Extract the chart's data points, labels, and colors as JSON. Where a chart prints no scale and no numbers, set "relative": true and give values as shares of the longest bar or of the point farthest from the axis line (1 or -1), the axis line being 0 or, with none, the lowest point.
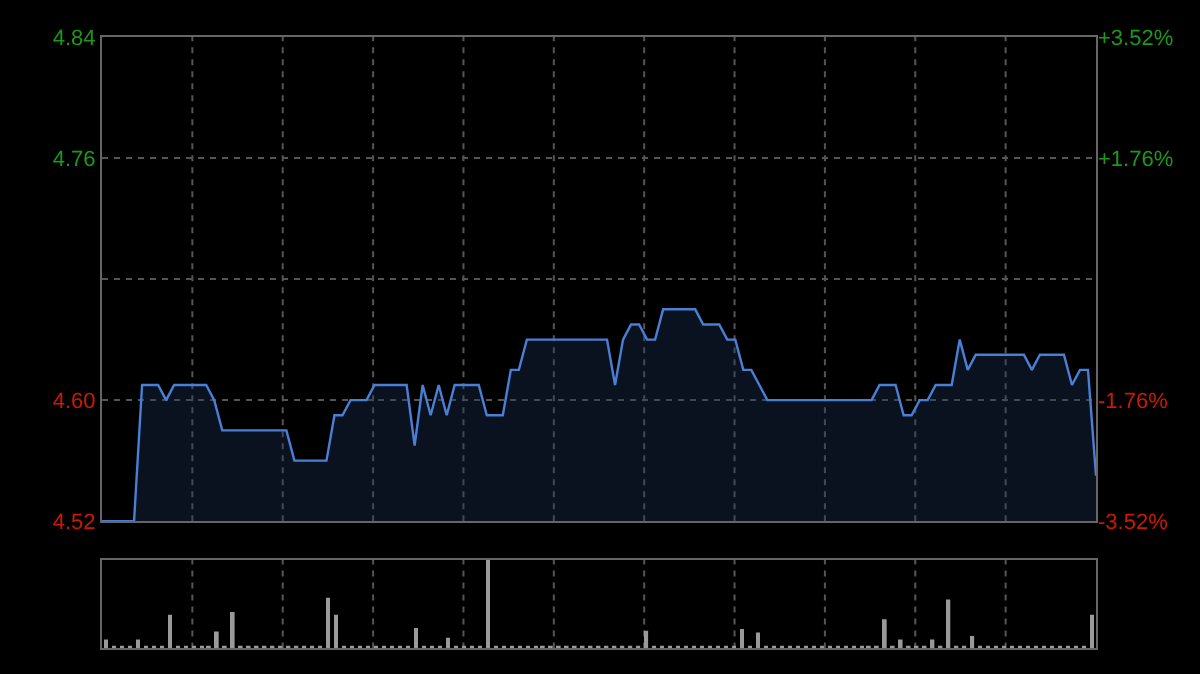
{
  "chart_data": [
    {
      "type": "area",
      "categories": [
        null,
        null,
        null,
        null,
        null,
        null,
        null,
        null,
        null,
        null,
        null,
        null,
        null,
        null,
        null,
        null,
        null,
        null,
        null,
        null,
        null,
        null,
        null,
        null,
        null,
        null,
        null,
        null,
        null,
        null,
        null,
        null,
        null,
        null,
        null,
        null,
        null,
        null,
        null,
        null,
        null,
        null,
        null,
        null,
        null,
        null,
        null,
        null,
        null,
        null,
        null,
        null,
        null,
        null,
        null,
        null,
        null,
        null,
        null,
        null,
        null,
        null,
        null,
        null,
        null,
        null,
        null,
        null,
        null,
        null,
        null,
        null,
        null,
        null,
        null,
        null,
        null,
        null,
        null,
        null,
        null,
        null,
        null,
        null,
        null,
        null,
        null,
        null,
        null,
        null,
        null,
        null,
        null,
        null,
        null,
        null,
        null,
        null,
        null,
        null,
        null,
        null,
        null,
        null,
        null,
        null,
        null,
        null,
        null,
        null,
        null,
        null,
        null,
        null,
        null,
        null,
        null,
        null,
        null,
        null,
        null,
        null,
        null,
        null,
        null
      ],
      "series": [
        {
          "color": "#4a7fd6",
          "values": [
            4.52,
            4.52,
            4.52,
            4.52,
            4.52,
            4.61,
            4.61,
            4.61,
            4.6,
            4.61,
            4.61,
            4.61,
            4.61,
            4.61,
            4.6,
            4.58,
            4.58,
            4.58,
            4.58,
            4.58,
            4.58,
            4.58,
            4.58,
            4.58,
            4.56,
            4.56,
            4.56,
            4.56,
            4.56,
            4.59,
            4.59,
            4.6,
            4.6,
            4.6,
            4.61,
            4.61,
            4.61,
            4.61,
            4.61,
            4.57,
            4.61,
            4.59,
            4.61,
            4.59,
            4.61,
            4.61,
            4.61,
            4.61,
            4.59,
            4.59,
            4.59,
            4.62,
            4.62,
            4.64,
            4.64,
            4.64,
            4.64,
            4.64,
            4.64,
            4.64,
            4.64,
            4.64,
            4.64,
            4.64,
            4.61,
            4.64,
            4.65,
            4.65,
            4.64,
            4.64,
            4.66,
            4.66,
            4.66,
            4.66,
            4.66,
            4.65,
            4.65,
            4.65,
            4.64,
            4.64,
            4.62,
            4.62,
            4.61,
            4.6,
            4.6,
            4.6,
            4.6,
            4.6,
            4.6,
            4.6,
            4.6,
            4.6,
            4.6,
            4.6,
            4.6,
            4.6,
            4.6,
            4.61,
            4.61,
            4.61,
            4.59,
            4.59,
            4.6,
            4.6,
            4.61,
            4.61,
            4.61,
            4.64,
            4.62,
            4.63,
            4.63,
            4.63,
            4.63,
            4.63,
            4.63,
            4.63,
            4.62,
            4.63,
            4.63,
            4.63,
            4.63,
            4.61,
            4.62,
            4.62,
            4.55
          ]
        }
      ],
      "ylim": [
        4.52,
        4.84
      ],
      "yticks": [
        {
          "value": 4.52,
          "label": "4.52"
        },
        {
          "value": 4.6,
          "label": "4.60"
        },
        {
          "value": 4.68,
          "label": null
        },
        {
          "value": 4.76,
          "label": "4.76"
        },
        {
          "value": 4.84,
          "label": "4.84"
        }
      ],
      "y2lim": [
        -3.52,
        3.52
      ],
      "y2ticks": [
        {
          "value": -3.52,
          "label": "-3.52%"
        },
        {
          "value": -1.76,
          "label": "-1.76%"
        },
        {
          "value": 0,
          "label": null
        },
        {
          "value": 1.76,
          "label": "+1.76%"
        },
        {
          "value": 3.52,
          "label": "+3.52%"
        }
      ],
      "grid": true,
      "tick_labels": "y"
    },
    {
      "type": "bar",
      "relative": true,
      "grid": true,
      "categories": [
        null,
        null,
        null,
        null,
        null,
        null,
        null,
        null,
        null,
        null,
        null,
        null,
        null,
        null,
        null,
        null,
        null,
        null,
        null,
        null,
        null,
        null,
        null,
        null,
        null,
        null,
        null,
        null,
        null,
        null,
        null,
        null,
        null,
        null,
        null,
        null,
        null,
        null,
        null,
        null,
        null,
        null,
        null,
        null,
        null,
        null,
        null,
        null,
        null,
        null,
        null,
        null,
        null,
        null,
        null,
        null,
        null,
        null,
        null,
        null,
        null,
        null,
        null,
        null,
        null,
        null,
        null,
        null,
        null,
        null,
        null,
        null,
        null,
        null,
        null,
        null,
        null,
        null,
        null,
        null,
        null,
        null,
        null,
        null,
        null,
        null,
        null,
        null,
        null,
        null,
        null,
        null,
        null,
        null,
        null,
        null,
        null,
        null,
        null,
        null,
        null,
        null,
        null,
        null,
        null,
        null,
        null,
        null,
        null,
        null,
        null,
        null,
        null,
        null,
        null,
        null,
        null,
        null,
        null,
        null,
        null,
        null,
        null,
        null,
        null
      ],
      "color": "#9a9a9a",
      "values": [
        0.1,
        0.03,
        0.03,
        0.03,
        0.1,
        0.03,
        0.03,
        0.03,
        0.38,
        0.03,
        0.03,
        0.03,
        0.03,
        0.03,
        0.19,
        0.03,
        0.41,
        0.03,
        0.03,
        0.03,
        0.03,
        0.03,
        0.03,
        0.03,
        0.03,
        0.03,
        0.03,
        0.03,
        0.57,
        0.38,
        0.03,
        0.03,
        0.03,
        0.03,
        0.03,
        0.03,
        0.03,
        0.03,
        0.03,
        0.23,
        0.03,
        0.03,
        0.03,
        0.12,
        0.03,
        0.03,
        0.03,
        0.03,
        1.0,
        0.03,
        0.03,
        0.03,
        0.03,
        0.03,
        0.03,
        0.03,
        0.03,
        0.03,
        0.03,
        0.03,
        0.03,
        0.03,
        0.03,
        0.03,
        0.03,
        0.03,
        0.03,
        0.03,
        0.2,
        0.03,
        0.03,
        0.03,
        0.03,
        0.03,
        0.03,
        0.03,
        0.03,
        0.03,
        0.03,
        0.03,
        0.22,
        0.03,
        0.18,
        0.03,
        0.03,
        0.03,
        0.03,
        0.03,
        0.03,
        0.03,
        0.03,
        0.03,
        0.03,
        0.03,
        0.03,
        0.03,
        0.03,
        0.03,
        0.33,
        0.03,
        0.1,
        0.03,
        0.03,
        0.03,
        0.1,
        0.03,
        0.55,
        0.03,
        0.03,
        0.14,
        0.03,
        0.03,
        0.03,
        0.03,
        0.03,
        0.03,
        0.03,
        0.03,
        0.03,
        0.03,
        0.03,
        0.03,
        0.03,
        0.03,
        0.38
      ]
    }
  ]
}
